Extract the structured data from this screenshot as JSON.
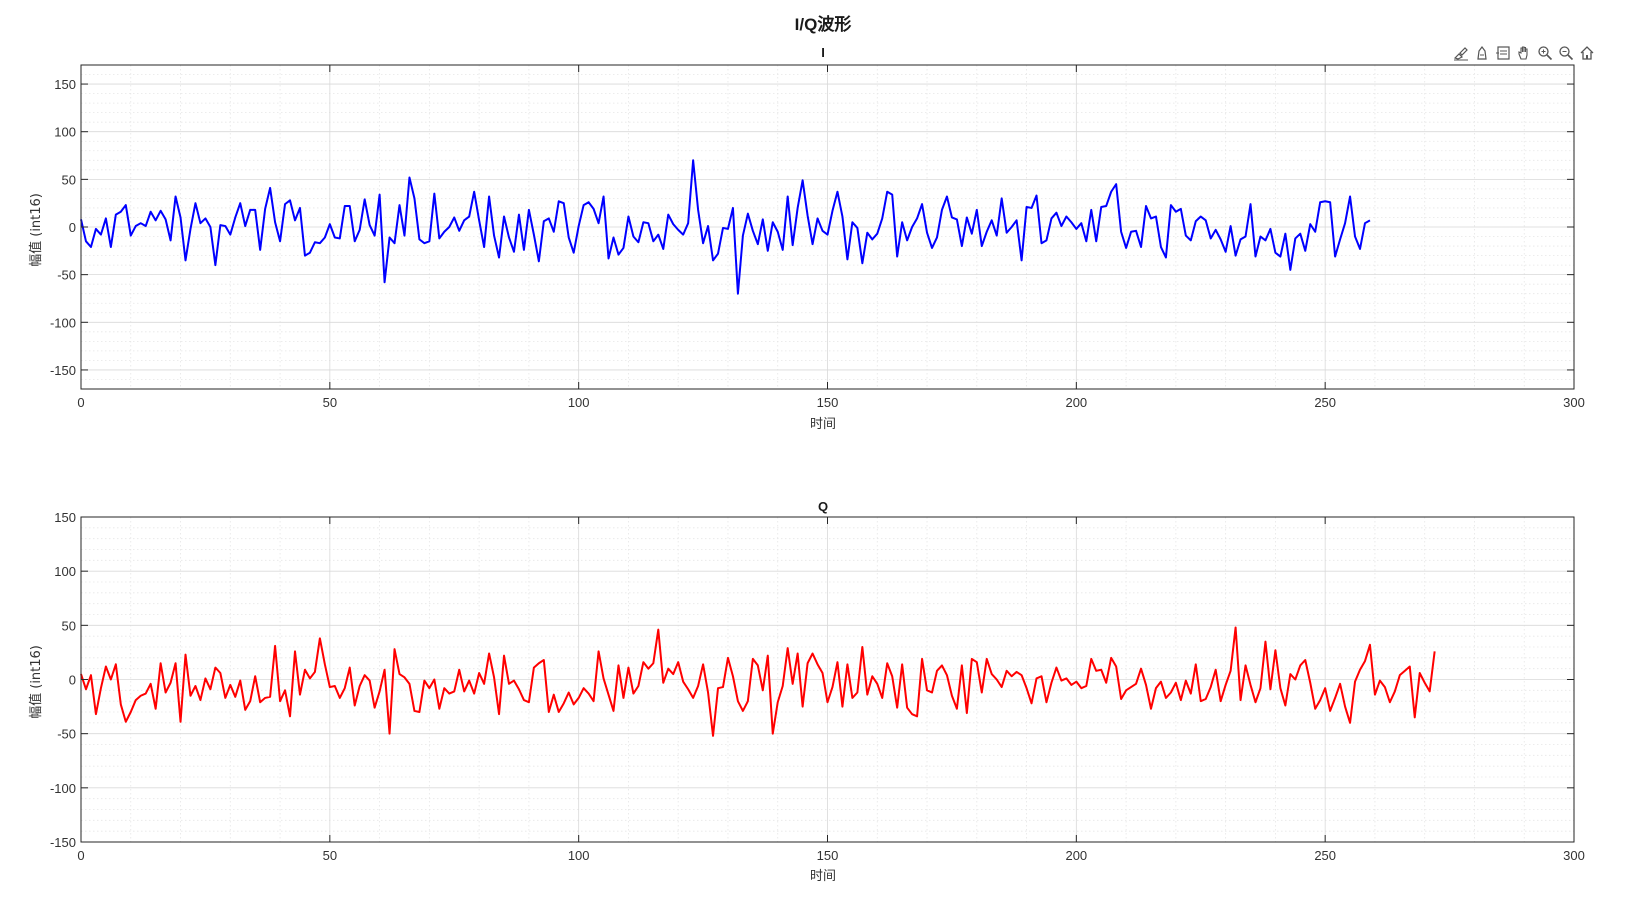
{
  "figure": {
    "title": "I/Q波形",
    "toolbar": [
      {
        "icon": "brush-icon",
        "name": "data-brush-button"
      },
      {
        "icon": "datatip-icon",
        "name": "data-tip-button"
      },
      {
        "icon": "restore-view-icon",
        "name": "restore-view-button"
      },
      {
        "icon": "pan-hand-icon",
        "name": "pan-button"
      },
      {
        "icon": "zoom-in-icon",
        "name": "zoom-in-button"
      },
      {
        "icon": "zoom-out-icon",
        "name": "zoom-out-button"
      },
      {
        "icon": "home-icon",
        "name": "home-button"
      }
    ]
  },
  "chart_data": [
    {
      "type": "line",
      "title": "I",
      "xlabel": "时间",
      "ylabel": "幅值 (int16)",
      "xlim": [
        0,
        300
      ],
      "ylim": [
        -170,
        170
      ],
      "xticks": [
        0,
        50,
        100,
        150,
        200,
        250,
        300
      ],
      "yticks": [
        -150,
        -100,
        -50,
        0,
        50,
        100,
        150
      ],
      "grid": true,
      "minor_grid": true,
      "color": "#0000ff",
      "values": [
        8,
        -15,
        -21,
        -2,
        -8,
        9,
        -21,
        13,
        16,
        23,
        -9,
        1,
        4,
        1,
        16,
        7,
        17,
        8,
        -14,
        32,
        10,
        -35,
        -2,
        25,
        4,
        9,
        0,
        -40,
        2,
        1,
        -8,
        10,
        25,
        1,
        18,
        18,
        -24,
        19,
        41,
        5,
        -15,
        24,
        28,
        7,
        20,
        -30,
        -27,
        -16,
        -17,
        -11,
        3,
        -11,
        -12,
        22,
        22,
        -15,
        -3,
        29,
        2,
        -9,
        34,
        -58,
        -11,
        -17,
        23,
        -9,
        52,
        30,
        -13,
        -17,
        -15,
        35,
        -12,
        -5,
        0,
        10,
        -4,
        7,
        11,
        37,
        7,
        -21,
        32,
        -9,
        -32,
        11,
        -11,
        -26,
        13,
        -24,
        18,
        -8,
        -36,
        6,
        9,
        -5,
        27,
        25,
        -11,
        -27,
        1,
        23,
        26,
        19,
        4,
        32,
        -33,
        -11,
        -29,
        -22,
        11,
        -10,
        -16,
        5,
        4,
        -15,
        -8,
        -23,
        13,
        3,
        -3,
        -8,
        4,
        70,
        18,
        -17,
        1,
        -35,
        -28,
        -1,
        -2,
        20,
        -70,
        -9,
        14,
        -4,
        -18,
        8,
        -25,
        5,
        -5,
        -24,
        32,
        -19,
        20,
        49,
        12,
        -18,
        9,
        -4,
        -8,
        17,
        37,
        11,
        -34,
        5,
        -1,
        -38,
        -6,
        -13,
        -7,
        9,
        37,
        34,
        -31,
        5,
        -14,
        0,
        9,
        24,
        -6,
        -22,
        -11,
        18,
        32,
        10,
        8,
        -20,
        10,
        -7,
        18,
        -20,
        -5,
        7,
        -9,
        30,
        -6,
        0,
        7,
        -35,
        21,
        20,
        33,
        -17,
        -14,
        9,
        15,
        1,
        11,
        5,
        -2,
        4,
        -15,
        18,
        -15,
        21,
        22,
        37,
        45,
        -5,
        -22,
        -5,
        -4,
        -21,
        22,
        9,
        11,
        -21,
        -32,
        23,
        16,
        19,
        -9,
        -14,
        6,
        11,
        7,
        -12,
        -3,
        -13,
        -26,
        1,
        -30,
        -13,
        -10,
        24,
        -31,
        -10,
        -14,
        -2,
        -27,
        -31,
        -7,
        -45,
        -12,
        -7,
        -25,
        3,
        -5,
        26,
        27,
        26,
        -31,
        -13,
        4,
        32,
        -10,
        -23,
        4,
        7
      ]
    },
    {
      "type": "line",
      "title": "Q",
      "xlabel": "时间",
      "ylabel": "幅值 (int16)",
      "xlim": [
        0,
        300
      ],
      "ylim": [
        -150,
        150
      ],
      "xticks": [
        0,
        50,
        100,
        150,
        200,
        250,
        300
      ],
      "yticks": [
        -150,
        -100,
        -50,
        0,
        50,
        100,
        150
      ],
      "grid": true,
      "minor_grid": true,
      "color": "#ff0000",
      "values": [
        5,
        -9,
        4,
        -32,
        -8,
        12,
        0,
        14,
        -23,
        -39,
        -30,
        -19,
        -15,
        -13,
        -4,
        -27,
        15,
        -12,
        -3,
        15,
        -39,
        23,
        -15,
        -6,
        -19,
        1,
        -9,
        11,
        6,
        -17,
        -5,
        -16,
        -1,
        -28,
        -20,
        3,
        -21,
        -17,
        -16,
        31,
        -20,
        -10,
        -34,
        26,
        -14,
        9,
        1,
        7,
        38,
        14,
        -7,
        -6,
        -17,
        -8,
        11,
        -24,
        -6,
        4,
        -1,
        -26,
        -11,
        9,
        -50,
        28,
        5,
        2,
        -4,
        -29,
        -30,
        -1,
        -8,
        0,
        -27,
        -8,
        -13,
        -11,
        9,
        -11,
        -1,
        -13,
        6,
        -4,
        24,
        2,
        -32,
        22,
        -4,
        -1,
        -9,
        -19,
        -21,
        11,
        15,
        18,
        -30,
        -14,
        -30,
        -22,
        -12,
        -23,
        -17,
        -8,
        -13,
        -20,
        26,
        1,
        -14,
        -29,
        13,
        -17,
        11,
        -13,
        -6,
        16,
        10,
        15,
        46,
        -3,
        10,
        5,
        16,
        -2,
        -9,
        -17,
        -6,
        14,
        -12,
        -52,
        -8,
        -7,
        20,
        3,
        -20,
        -29,
        -20,
        19,
        13,
        -10,
        22,
        -50,
        -21,
        -6,
        29,
        -4,
        24,
        -25,
        15,
        24,
        14,
        6,
        -21,
        -7,
        16,
        -25,
        14,
        -17,
        -12,
        30,
        -14,
        3,
        -4,
        -17,
        15,
        3,
        -26,
        14,
        -26,
        -32,
        -34,
        19,
        -10,
        -12,
        8,
        13,
        4,
        -15,
        -27,
        13,
        -31,
        19,
        16,
        -12,
        19,
        5,
        0,
        -7,
        8,
        3,
        7,
        4,
        -8,
        -22,
        1,
        3,
        -21,
        -3,
        11,
        -1,
        1,
        -5,
        -2,
        -8,
        -6,
        19,
        8,
        9,
        -3,
        20,
        12,
        -18,
        -10,
        -7,
        -4,
        10,
        -5,
        -27,
        -8,
        -2,
        -17,
        -12,
        -3,
        -19,
        -1,
        -13,
        14,
        -20,
        -18,
        -7,
        9,
        -20,
        -5,
        8,
        48,
        -19,
        13,
        -5,
        -21,
        -8,
        35,
        -9,
        27,
        -8,
        -24,
        5,
        0,
        13,
        18,
        -3,
        -27,
        -19,
        -8,
        -29,
        -17,
        -4,
        -25,
        -40,
        -2,
        9,
        17,
        32,
        -14,
        -1,
        -7,
        -21,
        -11,
        4,
        8,
        12,
        -35,
        6,
        -3,
        -11,
        26
      ]
    }
  ]
}
